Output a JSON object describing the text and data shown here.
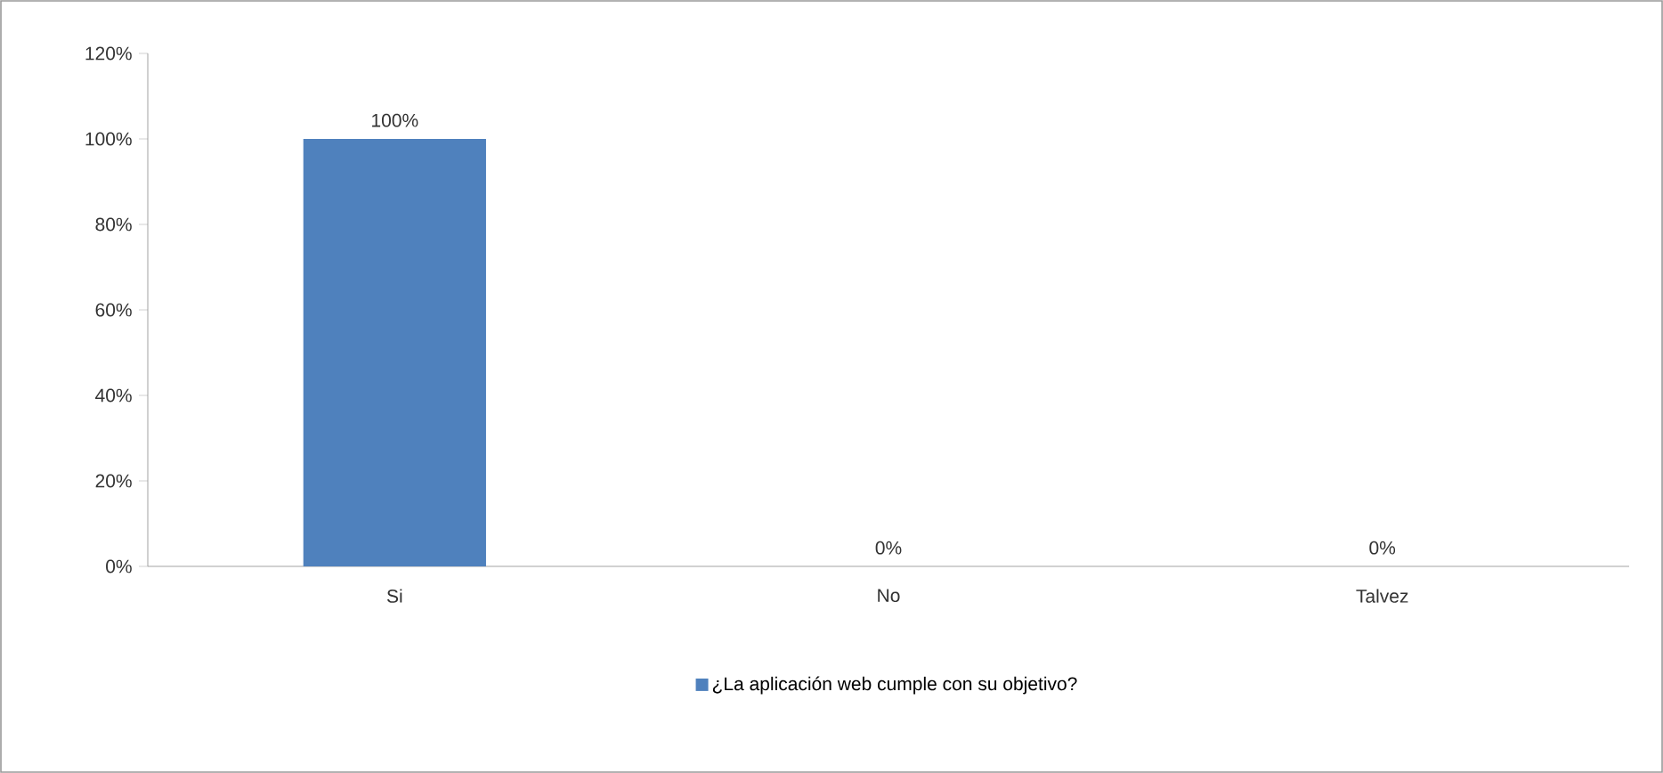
{
  "chart_data": {
    "type": "bar",
    "categories": [
      "Si",
      "No",
      "Talvez"
    ],
    "series": [
      {
        "name": "¿La aplicación web cumple con su objetivo?",
        "color": "#4f81bd",
        "values": [
          100,
          0,
          0
        ],
        "value_labels": [
          "100%",
          "0%",
          "0%"
        ]
      }
    ],
    "ylim": [
      0,
      120
    ],
    "yticks": [
      {
        "value": 0,
        "label": "0%"
      },
      {
        "value": 20,
        "label": "20%"
      },
      {
        "value": 40,
        "label": "40%"
      },
      {
        "value": 60,
        "label": "60%"
      },
      {
        "value": 80,
        "label": "80%"
      },
      {
        "value": 100,
        "label": "100%"
      },
      {
        "value": 120,
        "label": "120%"
      }
    ],
    "grid": false,
    "legend": "bottom"
  }
}
